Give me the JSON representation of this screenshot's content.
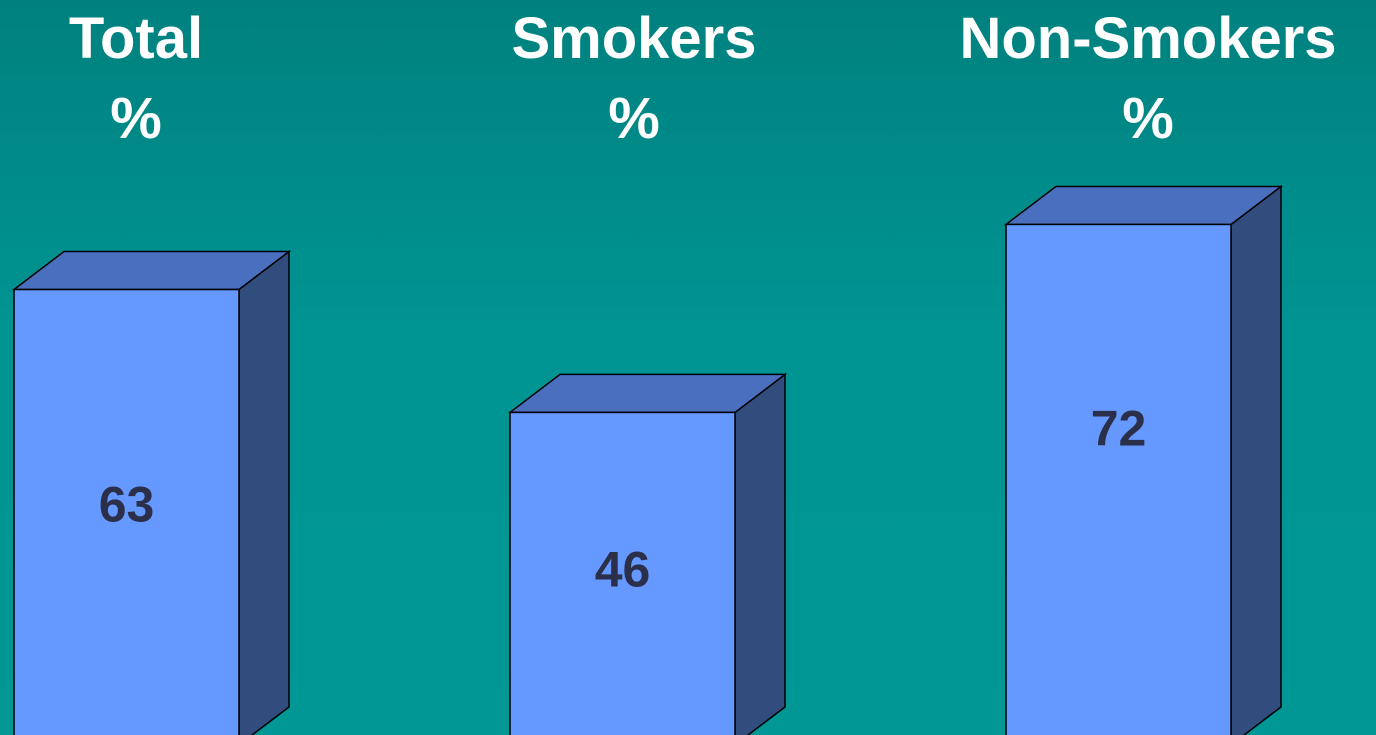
{
  "chart_data": {
    "type": "bar",
    "categories": [
      "Total",
      "Smokers",
      "Non-Smokers"
    ],
    "units": [
      "%",
      "%",
      "%"
    ],
    "values": [
      63,
      46,
      72
    ],
    "data_labels": [
      "63",
      "46",
      "72"
    ],
    "grid": false,
    "legend": "none",
    "style": "3d-column"
  },
  "colors": {
    "background_top": "#00817f",
    "background_bottom": "#009795",
    "bar_front": "#6699ff",
    "bar_top": "#4a6fbf",
    "bar_side": "#314d7e",
    "label_text": "#ffffff",
    "value_text": "#2b2f4a"
  }
}
